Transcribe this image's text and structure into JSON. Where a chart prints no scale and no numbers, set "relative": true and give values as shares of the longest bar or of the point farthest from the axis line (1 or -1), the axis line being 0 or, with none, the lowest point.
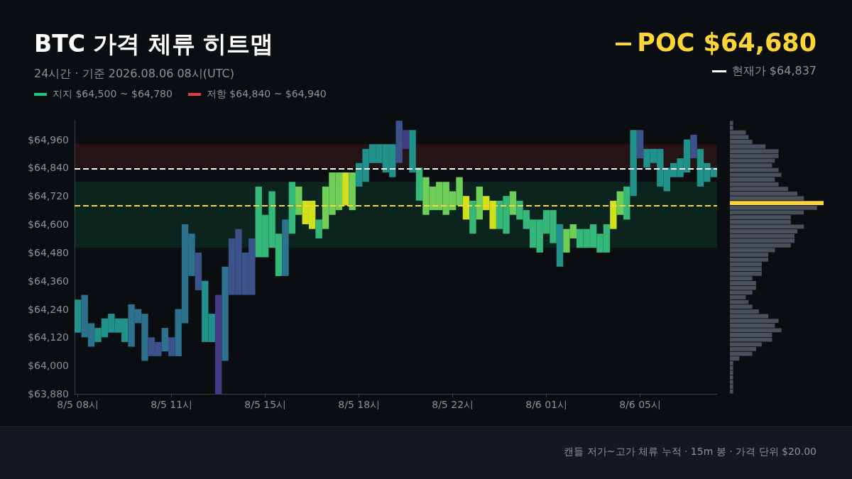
{
  "chart_data": [
    {
      "type": "bar",
      "title": "BTC 가격 체류 히트맵",
      "subtitle": "24시간 · 기준 2026.08.06 08시(UTC)",
      "categories": [
        "8/5 08시",
        null,
        null,
        null,
        null,
        null,
        null,
        null,
        null,
        null,
        null,
        null,
        null,
        null,
        "8/5 11시",
        null,
        null,
        null,
        null,
        null,
        null,
        null,
        null,
        null,
        null,
        null,
        null,
        null,
        "8/5 15시",
        null,
        null,
        null,
        null,
        null,
        null,
        null,
        null,
        null,
        null,
        null,
        null,
        null,
        "8/5 18시",
        null,
        null,
        null,
        null,
        null,
        null,
        null,
        null,
        null,
        null,
        null,
        null,
        null,
        "8/5 22시",
        null,
        null,
        null,
        null,
        null,
        null,
        null,
        null,
        null,
        null,
        null,
        null,
        null,
        "8/6 01시",
        null,
        null,
        null,
        null,
        null,
        null,
        null,
        null,
        null,
        null,
        null,
        null,
        null,
        "8/6 05시",
        null,
        null,
        null,
        null,
        null,
        null,
        null,
        null,
        null,
        null,
        null
      ],
      "base": [
        64140,
        64120,
        64080,
        64100,
        64120,
        64140,
        64140,
        64100,
        64080,
        64180,
        64020,
        64040,
        64040,
        64060,
        64040,
        64040,
        64180,
        64380,
        64320,
        64100,
        64100,
        63880,
        64020,
        64300,
        64300,
        64300,
        64300,
        64460,
        64460,
        64500,
        64380,
        64380,
        64560,
        64640,
        64600,
        64580,
        64540,
        64580,
        64640,
        64660,
        64680,
        64660,
        64760,
        64780,
        64860,
        64860,
        64820,
        64800,
        64860,
        64920,
        64820,
        64700,
        64640,
        64660,
        64660,
        64640,
        64660,
        64680,
        64620,
        64560,
        64620,
        64660,
        64580,
        64580,
        64560,
        64640,
        64620,
        64580,
        64500,
        64480,
        64560,
        64520,
        64420,
        64480,
        64540,
        64500,
        64500,
        64500,
        64480,
        64480,
        64580,
        64640,
        64620,
        64720,
        64880,
        64840,
        64860,
        64760,
        64740,
        64800,
        64800,
        64820,
        64880,
        64760,
        64780,
        64800
      ],
      "values": [
        140,
        180,
        100,
        60,
        80,
        80,
        60,
        100,
        180,
        60,
        200,
        80,
        60,
        100,
        80,
        200,
        420,
        180,
        160,
        260,
        120,
        420,
        400,
        240,
        280,
        180,
        240,
        300,
        180,
        240,
        180,
        240,
        220,
        120,
        100,
        120,
        80,
        180,
        180,
        160,
        140,
        160,
        100,
        140,
        80,
        80,
        120,
        140,
        180,
        80,
        180,
        140,
        160,
        100,
        120,
        140,
        80,
        120,
        100,
        140,
        140,
        60,
        120,
        120,
        160,
        100,
        80,
        80,
        120,
        140,
        100,
        140,
        180,
        100,
        60,
        80,
        80,
        100,
        80,
        120,
        120,
        100,
        140,
        280,
        120,
        80,
        60,
        160,
        100,
        60,
        80,
        140,
        100,
        160,
        80,
        40
      ],
      "colors": [
        "#21918c",
        "#2c728e",
        "#2c728e",
        "#21918c",
        "#21918c",
        "#21918c",
        "#21918c",
        "#21918c",
        "#2c728e",
        "#2c728e",
        "#2c728e",
        "#3b528b",
        "#3b528b",
        "#2c728e",
        "#3b528b",
        "#2c728e",
        "#2c728e",
        "#2c728e",
        "#3b528b",
        "#21918c",
        "#21918c",
        "#443983",
        "#2c728e",
        "#3b528b",
        "#3b528b",
        "#3b528b",
        "#3b528b",
        "#35b779",
        "#35b779",
        "#35b779",
        "#35b779",
        "#2c728e",
        "#35b779",
        "#6ece58",
        "#d0e11c",
        "#d0e11c",
        "#35b779",
        "#6ece58",
        "#6ece58",
        "#6ece58",
        "#d0e11c",
        "#6ece58",
        "#21918c",
        "#21918c",
        "#21918c",
        "#21918c",
        "#21918c",
        "#21918c",
        "#3b528b",
        "#443983",
        "#21918c",
        "#35b779",
        "#6ece58",
        "#6ece58",
        "#6ece58",
        "#6ece58",
        "#6ece58",
        "#6ece58",
        "#d0e11c",
        "#35b779",
        "#6ece58",
        "#d0e11c",
        "#d0e11c",
        "#35b779",
        "#35b779",
        "#6ece58",
        "#35b779",
        "#35b779",
        "#35b779",
        "#35b779",
        "#35b779",
        "#35b779",
        "#21918c",
        "#6ece58",
        "#6ece58",
        "#35b779",
        "#35b779",
        "#35b779",
        "#35b779",
        "#35b779",
        "#d0e11c",
        "#6ece58",
        "#35b779",
        "#21918c",
        "#3b528b",
        "#21918c",
        "#21918c",
        "#21918c",
        "#21918c",
        "#21918c",
        "#21918c",
        "#21918c",
        "#3b528b",
        "#21918c",
        "#21918c",
        "#21918c"
      ],
      "ylim": [
        63880,
        65040
      ],
      "yticks": [
        {
          "value": 63880,
          "label": "$63,880"
        },
        {
          "value": 64000,
          "label": "$64,000"
        },
        {
          "value": 64120,
          "label": "$64,120"
        },
        {
          "value": 64240,
          "label": "$64,240"
        },
        {
          "value": 64360,
          "label": "$64,360"
        },
        {
          "value": 64480,
          "label": "$64,480"
        },
        {
          "value": 64600,
          "label": "$64,600"
        },
        {
          "value": 64720,
          "label": "$64,720"
        },
        {
          "value": 64840,
          "label": "$64,840"
        },
        {
          "value": 64960,
          "label": "$64,960"
        }
      ],
      "ref_lines": [
        {
          "axis": "y",
          "value": 64680,
          "label": "POC $64,680",
          "color": "#fcd535",
          "line_style": "dashed"
        },
        {
          "axis": "y",
          "value": 64837,
          "label": "현재가 $64,837",
          "color": "#ffffff",
          "line_style": "dashed"
        }
      ],
      "bands": [
        {
          "axis": "y",
          "from": 64500,
          "to": 64780,
          "label": "지지 $64,500 ~ $64,780",
          "color": "#16c784"
        },
        {
          "axis": "y",
          "from": 64840,
          "to": 64940,
          "label": "저항 $64,840 ~ $64,940",
          "color": "#ea3943"
        }
      ],
      "legend": "top",
      "annotations": [
        "캔들 저가~고가 체류 누적 · 15m 봉 · 가격 단위 $20.00"
      ]
    },
    {
      "type": "bar",
      "orientation": "horizontal",
      "relative": true,
      "tick_labels": false,
      "categories": [
        null,
        null,
        null,
        null,
        null,
        null,
        null,
        null,
        null,
        null,
        null,
        null,
        null,
        null,
        null,
        null,
        null,
        null,
        null,
        null,
        null,
        null,
        null,
        null,
        null,
        null,
        null,
        null,
        null,
        null,
        null,
        null,
        null,
        null,
        null,
        null,
        null,
        null,
        null,
        null,
        null,
        null,
        null,
        null,
        null,
        null,
        null,
        null,
        null,
        null,
        null,
        null,
        null,
        null,
        null,
        null,
        null,
        null
      ],
      "values": [
        0.035,
        0.035,
        0.17,
        0.2,
        0.24,
        0.38,
        0.52,
        0.52,
        0.48,
        0.45,
        0.52,
        0.55,
        0.48,
        0.52,
        0.62,
        0.72,
        0.79,
        1,
        0.93,
        0.79,
        0.65,
        0.65,
        0.79,
        0.72,
        0.69,
        0.69,
        0.65,
        0.48,
        0.41,
        0.41,
        0.34,
        0.34,
        0.34,
        0.24,
        0.28,
        0.28,
        0.24,
        0.17,
        0.2,
        0.24,
        0.31,
        0.41,
        0.52,
        0.48,
        0.55,
        0.45,
        0.45,
        0.34,
        0.28,
        0.24,
        0.1,
        0.035,
        0.035,
        0.035,
        0.035,
        0.035,
        0.035,
        0.035
      ],
      "colors": [
        "#4a505b",
        "#4a505b",
        "#4a505b",
        "#4a505b",
        "#4a505b",
        "#4a505b",
        "#4a505b",
        "#4a505b",
        "#4a505b",
        "#4a505b",
        "#4a505b",
        "#4a505b",
        "#4a505b",
        "#4a505b",
        "#4a505b",
        "#4a505b",
        "#4a505b",
        "#fcd535",
        "#4a505b",
        "#4a505b",
        "#4a505b",
        "#4a505b",
        "#4a505b",
        "#4a505b",
        "#4a505b",
        "#4a505b",
        "#4a505b",
        "#4a505b",
        "#4a505b",
        "#4a505b",
        "#4a505b",
        "#4a505b",
        "#4a505b",
        "#4a505b",
        "#4a505b",
        "#4a505b",
        "#4a505b",
        "#4a505b",
        "#4a505b",
        "#4a505b",
        "#4a505b",
        "#4a505b",
        "#4a505b",
        "#4a505b",
        "#4a505b",
        "#4a505b",
        "#4a505b",
        "#4a505b",
        "#4a505b",
        "#4a505b",
        "#4a505b",
        "#4a505b",
        "#4a505b",
        "#4a505b",
        "#4a505b",
        "#4a505b",
        "#4a505b",
        "#4a505b"
      ]
    }
  ]
}
